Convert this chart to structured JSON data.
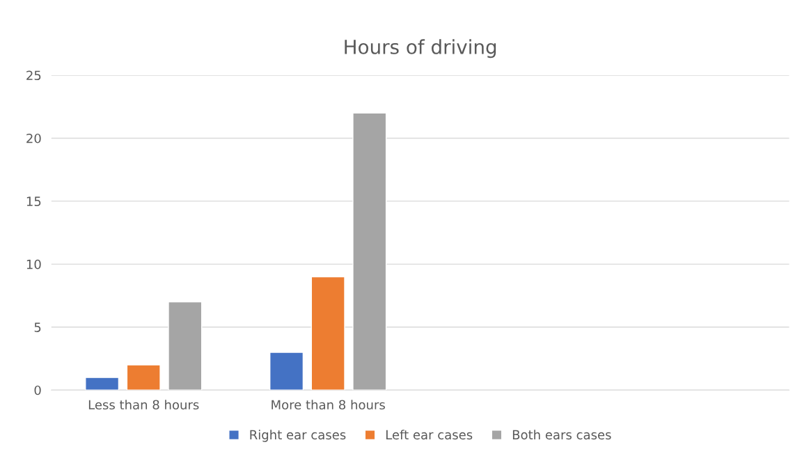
{
  "chart_data": {
    "type": "bar",
    "title": "Hours of driving",
    "categories": [
      "Less than 8 hours",
      "More than 8 hours",
      null,
      null
    ],
    "series": [
      {
        "name": "Right ear cases",
        "color": "#4472c4",
        "values": [
          1,
          3,
          null,
          null
        ]
      },
      {
        "name": "Left ear cases",
        "color": "#ed7d31",
        "values": [
          2,
          9,
          null,
          null
        ]
      },
      {
        "name": "Both ears cases",
        "color": "#a5a5a5",
        "values": [
          7,
          22,
          null,
          null
        ]
      }
    ],
    "ylim": [
      0,
      25
    ],
    "yticks": [
      0,
      5,
      10,
      15,
      20,
      25
    ],
    "grid": "y",
    "legend": "bottom"
  }
}
